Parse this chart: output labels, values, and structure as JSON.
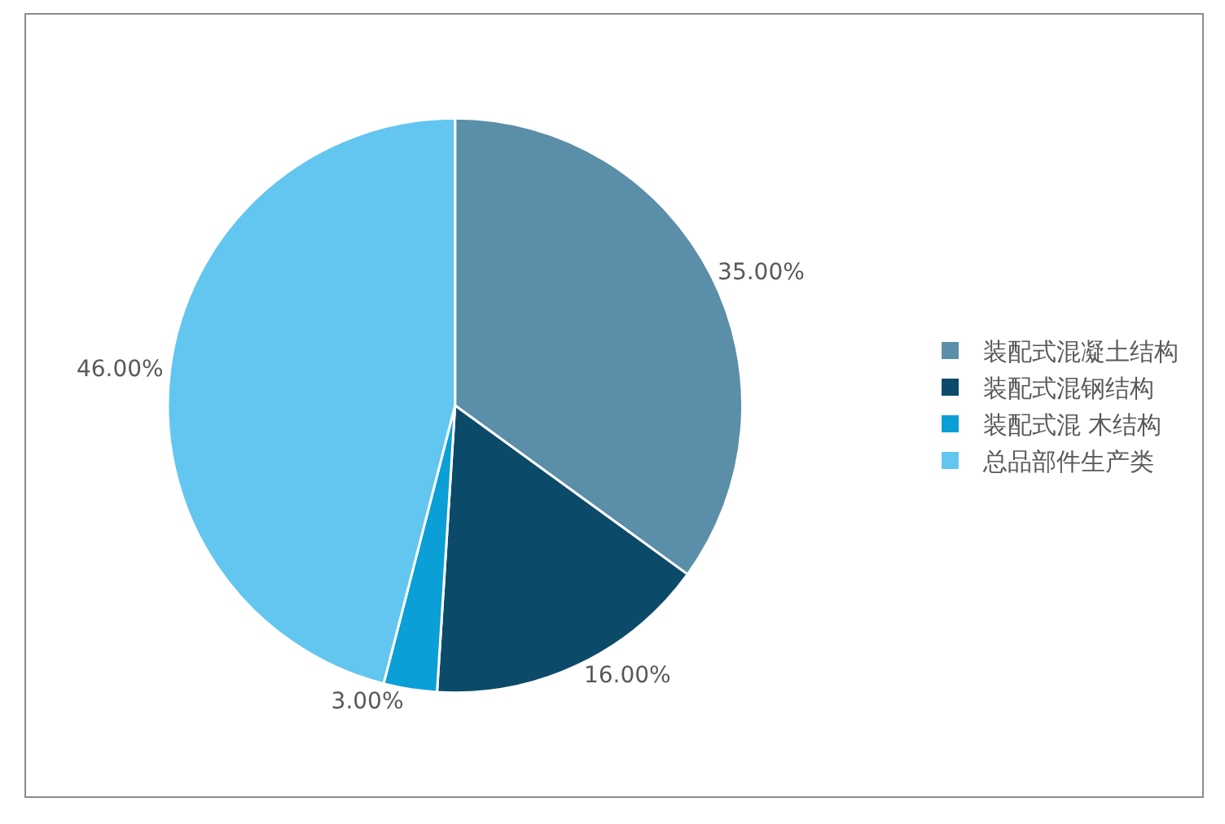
{
  "chart_data": {
    "type": "pie",
    "categories": [
      "装配式混凝土结构",
      "装配式混钢结构",
      "装配式混 木结构",
      "总品部件生产类"
    ],
    "values": [
      35,
      16,
      3,
      46
    ],
    "colors": [
      "#5b8ea8",
      "#0c4a6a",
      "#0a9fd6",
      "#63c6f0"
    ],
    "value_labels": [
      "35.00%",
      "16.00%",
      "3.00%",
      "46.00%"
    ],
    "legend": "right"
  }
}
